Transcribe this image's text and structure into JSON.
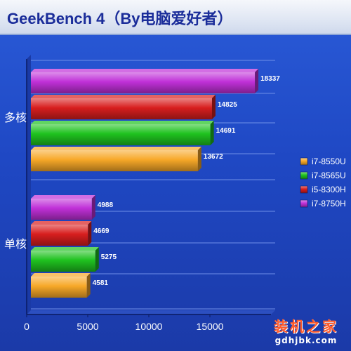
{
  "chart_data": {
    "type": "bar",
    "orientation": "horizontal",
    "title": "GeekBench 4（By电脑爱好者）",
    "categories": [
      "多核",
      "单核"
    ],
    "series": [
      {
        "name": "i7-8550U",
        "color": "#f7a828",
        "values": [
          13672,
          4581
        ]
      },
      {
        "name": "i7-8565U",
        "color": "#1fc21f",
        "values": [
          14691,
          5275
        ]
      },
      {
        "name": "i5-8300H",
        "color": "#d81e1e",
        "values": [
          14825,
          4669
        ]
      },
      {
        "name": "i7-8750H",
        "color": "#c030d8",
        "values": [
          18337,
          4988
        ]
      }
    ],
    "xlim": [
      0,
      20000
    ],
    "xticks": [
      "0",
      "5000",
      "10000",
      "15000"
    ],
    "grid": true,
    "legend": "right"
  },
  "watermark": {
    "text_cn": "装机之家",
    "url": "gdhjbk.com"
  }
}
